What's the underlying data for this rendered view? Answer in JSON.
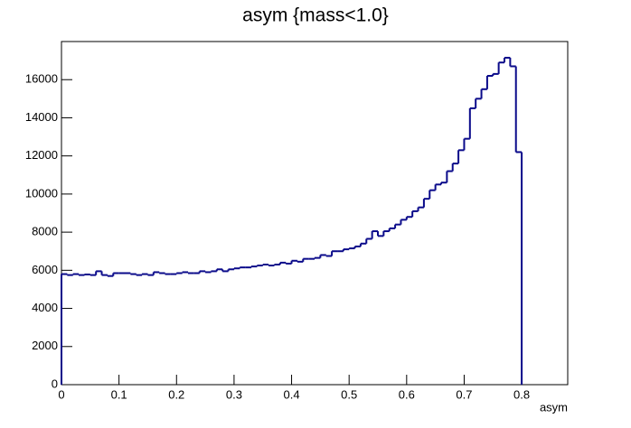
{
  "chart_data": {
    "type": "histogram",
    "title": "asym {mass<1.0}",
    "x_label": "asym",
    "color": "#0a0a8a",
    "bins": [
      0,
      0.01,
      0.02,
      0.03,
      0.04,
      0.05,
      0.06,
      0.07,
      0.08,
      0.09,
      0.1,
      0.11,
      0.12,
      0.13,
      0.14,
      0.15,
      0.16,
      0.17,
      0.18,
      0.19,
      0.2,
      0.21,
      0.22,
      0.23,
      0.24,
      0.25,
      0.26,
      0.27,
      0.28,
      0.29,
      0.3,
      0.31,
      0.32,
      0.33,
      0.34,
      0.35,
      0.36,
      0.37,
      0.38,
      0.39,
      0.4,
      0.41,
      0.42,
      0.43,
      0.44,
      0.45,
      0.46,
      0.47,
      0.48,
      0.49,
      0.5,
      0.51,
      0.52,
      0.53,
      0.54,
      0.55,
      0.56,
      0.57,
      0.58,
      0.59,
      0.6,
      0.61,
      0.62,
      0.63,
      0.64,
      0.65,
      0.66,
      0.67,
      0.68,
      0.69,
      0.7,
      0.71,
      0.72,
      0.73,
      0.74,
      0.75,
      0.76,
      0.77,
      0.78,
      0.79,
      0.8
    ],
    "values": [
      5800,
      5750,
      5800,
      5750,
      5780,
      5750,
      5950,
      5750,
      5700,
      5850,
      5850,
      5850,
      5800,
      5750,
      5800,
      5750,
      5900,
      5850,
      5800,
      5800,
      5850,
      5900,
      5850,
      5850,
      5950,
      5900,
      5950,
      6050,
      5950,
      6050,
      6100,
      6150,
      6150,
      6200,
      6250,
      6300,
      6250,
      6300,
      6400,
      6350,
      6500,
      6450,
      6600,
      6600,
      6650,
      6800,
      6750,
      7000,
      7000,
      7100,
      7150,
      7250,
      7400,
      7650,
      8050,
      7800,
      8050,
      8200,
      8400,
      8650,
      8800,
      9100,
      9300,
      9750,
      10200,
      10500,
      10600,
      11200,
      11600,
      12300,
      12900,
      14500,
      15000,
      15500,
      16200,
      16300,
      16900,
      17150,
      16700,
      12200
    ],
    "xlim": [
      0,
      0.88
    ],
    "ylim": [
      0,
      18000
    ],
    "xticks": [
      0,
      0.1,
      0.2,
      0.3,
      0.4,
      0.5,
      0.6,
      0.7,
      0.8
    ],
    "yticks": [
      0,
      2000,
      4000,
      6000,
      8000,
      10000,
      12000,
      14000,
      16000
    ]
  }
}
